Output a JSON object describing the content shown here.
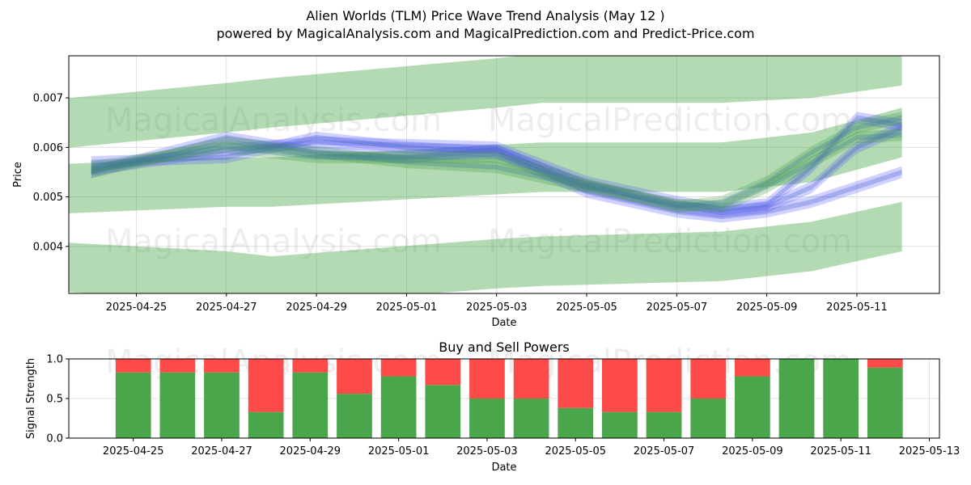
{
  "chart_data": [
    {
      "type": "area",
      "title": "Alien Worlds (TLM) Price Wave Trend Analysis (May 12 )",
      "subtitle": "powered by MagicalAnalysis.com and MagicalPrediction.com and Predict-Price.com",
      "xlabel": "Date",
      "ylabel": "Price",
      "ylim": [
        0.00305,
        0.00785
      ],
      "xlim": [
        "2025-04-23T12:00",
        "2025-05-12T20:00"
      ],
      "grid": true,
      "x_ticks": [
        "2025-04-25",
        "2025-04-27",
        "2025-04-29",
        "2025-05-01",
        "2025-05-03",
        "2025-05-05",
        "2025-05-07",
        "2025-05-09",
        "2025-05-11"
      ],
      "y_ticks": [
        0.004,
        0.005,
        0.006,
        0.007
      ],
      "watermarks": [
        "MagicalAnalysis.com",
        "MagicalPrediction.com"
      ],
      "green_bands": [
        {
          "name": "upper-band",
          "dates": [
            "2025-04-23",
            "2025-04-27",
            "2025-04-28",
            "2025-05-03",
            "2025-05-04",
            "2025-05-08",
            "2025-05-09",
            "2025-05-10",
            "2025-05-12"
          ],
          "values": [
            0.00645,
            0.0068,
            0.0069,
            0.0073,
            0.0074,
            0.0074,
            0.00745,
            0.0075,
            0.00775
          ]
        },
        {
          "name": "middle-band",
          "dates": [
            "2025-04-23",
            "2025-04-27",
            "2025-04-28",
            "2025-05-03",
            "2025-05-04",
            "2025-05-08",
            "2025-05-09",
            "2025-05-10",
            "2025-05-12"
          ],
          "values": [
            0.00515,
            0.0053,
            0.0053,
            0.00555,
            0.0056,
            0.0056,
            0.0057,
            0.0058,
            0.0063
          ]
        },
        {
          "name": "lower-band",
          "dates": [
            "2025-04-23",
            "2025-04-27",
            "2025-04-28",
            "2025-05-03",
            "2025-05-04",
            "2025-05-08",
            "2025-05-09",
            "2025-05-10",
            "2025-05-12"
          ],
          "values": [
            0.0036,
            0.0034,
            0.0033,
            0.00365,
            0.0037,
            0.0038,
            0.0039,
            0.004,
            0.0044
          ]
        }
      ],
      "wave_series": [
        {
          "name": "blue-wave-1",
          "color": "blue",
          "dates": [
            "2025-04-24",
            "2025-04-27",
            "2025-04-29",
            "2025-05-01",
            "2025-05-03",
            "2025-05-05",
            "2025-05-07",
            "2025-05-08",
            "2025-05-09",
            "2025-05-10",
            "2025-05-11",
            "2025-05-12"
          ],
          "values": [
            0.00555,
            0.00595,
            0.0061,
            0.00605,
            0.006,
            0.0053,
            0.0049,
            0.00475,
            0.00485,
            0.0056,
            0.0066,
            0.00645
          ]
        },
        {
          "name": "blue-wave-2",
          "color": "blue",
          "dates": [
            "2025-04-24",
            "2025-04-27",
            "2025-04-29",
            "2025-05-01",
            "2025-05-03",
            "2025-05-05",
            "2025-05-07",
            "2025-05-08",
            "2025-05-09",
            "2025-05-10",
            "2025-05-11",
            "2025-05-12"
          ],
          "values": [
            0.0057,
            0.0058,
            0.0062,
            0.006,
            0.0059,
            0.0051,
            0.0047,
            0.0046,
            0.0047,
            0.0049,
            0.0052,
            0.0055
          ]
        },
        {
          "name": "blue-wave-3",
          "color": "blue",
          "dates": [
            "2025-04-24",
            "2025-04-27",
            "2025-04-29",
            "2025-05-01",
            "2025-05-03",
            "2025-05-05",
            "2025-05-07",
            "2025-05-08",
            "2025-05-09",
            "2025-05-10",
            "2025-05-11",
            "2025-05-12"
          ],
          "values": [
            0.0055,
            0.0062,
            0.0059,
            0.0058,
            0.00595,
            0.0052,
            0.0048,
            0.0047,
            0.0048,
            0.0052,
            0.006,
            0.0064
          ]
        },
        {
          "name": "green-wave-1",
          "color": "green",
          "dates": [
            "2025-04-24",
            "2025-04-27",
            "2025-04-29",
            "2025-05-01",
            "2025-05-03",
            "2025-05-05",
            "2025-05-07",
            "2025-05-08",
            "2025-05-09",
            "2025-05-10",
            "2025-05-11",
            "2025-05-12"
          ],
          "values": [
            0.0055,
            0.0061,
            0.0059,
            0.0057,
            0.0056,
            0.0052,
            0.00485,
            0.0048,
            0.0052,
            0.0057,
            0.0062,
            0.00625
          ]
        },
        {
          "name": "green-wave-2",
          "color": "green",
          "dates": [
            "2025-04-24",
            "2025-04-27",
            "2025-04-29",
            "2025-05-01",
            "2025-05-03",
            "2025-05-05",
            "2025-05-07",
            "2025-05-08",
            "2025-05-09",
            "2025-05-10",
            "2025-05-11",
            "2025-05-12"
          ],
          "values": [
            0.0056,
            0.006,
            0.0058,
            0.0058,
            0.0058,
            0.00525,
            0.0048,
            0.0049,
            0.0053,
            0.0059,
            0.0064,
            0.0066
          ]
        }
      ]
    },
    {
      "type": "bar",
      "title": "Buy and Sell Powers",
      "xlabel": "Date",
      "ylabel": "Signal Strength",
      "ylim": [
        0,
        1.0
      ],
      "y_ticks": [
        "0.0",
        "0.5",
        "1.0"
      ],
      "x_ticks": [
        "2025-04-25",
        "2025-04-27",
        "2025-04-29",
        "2025-05-01",
        "2025-05-03",
        "2025-05-05",
        "2025-05-07",
        "2025-05-09",
        "2025-05-11",
        "2025-05-13"
      ],
      "grid": true,
      "categories": [
        "2025-04-25",
        "2025-04-26",
        "2025-04-27",
        "2025-04-28",
        "2025-04-29",
        "2025-04-30",
        "2025-05-01",
        "2025-05-02",
        "2025-05-03",
        "2025-05-04",
        "2025-05-05",
        "2025-05-06",
        "2025-05-07",
        "2025-05-08",
        "2025-05-09",
        "2025-05-10",
        "2025-05-11",
        "2025-05-12"
      ],
      "series": [
        {
          "name": "Buy",
          "color": "#4aa64a",
          "values": [
            0.83,
            0.83,
            0.83,
            0.33,
            0.83,
            0.56,
            0.78,
            0.67,
            0.5,
            0.5,
            0.38,
            0.33,
            0.33,
            0.5,
            0.78,
            1.0,
            1.0,
            0.89
          ]
        },
        {
          "name": "Sell",
          "color": "#ff4a4a",
          "values": [
            0.17,
            0.17,
            0.17,
            0.67,
            0.17,
            0.44,
            0.22,
            0.33,
            0.5,
            0.5,
            0.62,
            0.67,
            0.67,
            0.5,
            0.22,
            0.0,
            0.0,
            0.11
          ]
        }
      ]
    }
  ]
}
